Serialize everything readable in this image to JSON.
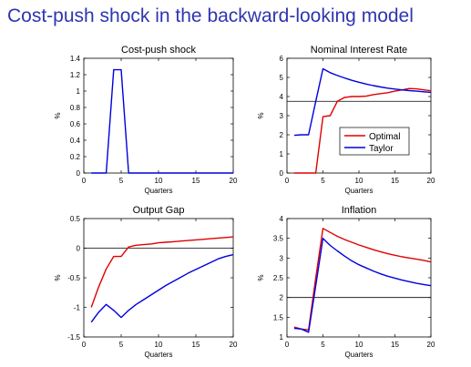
{
  "slide": {
    "title": "Cost-push shock in the backward-looking model"
  },
  "colors": {
    "optimal": "#e00000",
    "taylor": "#0000dd",
    "reference": "#000000",
    "title": "#2f35b0"
  },
  "chart_data": [
    {
      "type": "line",
      "title": "Cost-push shock",
      "xlabel": "Quarters",
      "ylabel": "%",
      "xlim": [
        0,
        20
      ],
      "ylim": [
        0,
        1.4
      ],
      "xticks": [
        "0",
        "5",
        "10",
        "15",
        "20"
      ],
      "yticks": [
        "0",
        "0.2",
        "0.4",
        "0.6",
        "0.8",
        "1",
        "1.2",
        "1.4"
      ],
      "grid": false,
      "reference_line": null,
      "legend": [],
      "series": [
        {
          "color": "#0000dd",
          "x": [
            1,
            2,
            3,
            4,
            5,
            6,
            7,
            8,
            9,
            10,
            11,
            12,
            13,
            14,
            15,
            16,
            17,
            18,
            19,
            20
          ],
          "y": [
            0,
            0,
            0,
            1.26,
            1.26,
            0,
            0,
            0,
            0,
            0,
            0,
            0,
            0,
            0,
            0,
            0,
            0,
            0,
            0,
            0
          ]
        }
      ]
    },
    {
      "type": "line",
      "title": "Nominal Interest Rate",
      "xlabel": "Quarters",
      "ylabel": "%",
      "xlim": [
        0,
        20
      ],
      "ylim": [
        0,
        6
      ],
      "xticks": [
        "0",
        "5",
        "10",
        "15",
        "20"
      ],
      "yticks": [
        "0",
        "1",
        "2",
        "3",
        "4",
        "5",
        "6"
      ],
      "grid": false,
      "reference_line": 3.75,
      "legend_placement": "center-right",
      "legend": [
        {
          "label": "Optimal",
          "color": "#e00000"
        },
        {
          "label": "Taylor",
          "color": "#0000dd"
        }
      ],
      "series": [
        {
          "name": "Optimal",
          "color": "#e00000",
          "x": [
            1,
            2,
            3,
            4,
            5,
            6,
            7,
            8,
            9,
            10,
            11,
            12,
            13,
            14,
            15,
            16,
            17,
            18,
            19,
            20
          ],
          "y": [
            0,
            0,
            0,
            0,
            2.95,
            3.0,
            3.75,
            3.95,
            4.0,
            4.0,
            4.02,
            4.1,
            4.15,
            4.2,
            4.28,
            4.35,
            4.42,
            4.4,
            4.35,
            4.3
          ]
        },
        {
          "name": "Taylor",
          "color": "#0000dd",
          "x": [
            1,
            2,
            3,
            4,
            5,
            6,
            7,
            8,
            9,
            10,
            11,
            12,
            13,
            14,
            15,
            16,
            17,
            18,
            19,
            20
          ],
          "y": [
            1.97,
            2.0,
            2.0,
            3.75,
            5.45,
            5.25,
            5.1,
            4.97,
            4.85,
            4.75,
            4.65,
            4.57,
            4.5,
            4.44,
            4.39,
            4.35,
            4.31,
            4.28,
            4.25,
            4.22
          ]
        }
      ]
    },
    {
      "type": "line",
      "title": "Output Gap",
      "xlabel": "Quarters",
      "ylabel": "%",
      "xlim": [
        0,
        20
      ],
      "ylim": [
        -1.5,
        0.5
      ],
      "xticks": [
        "0",
        "5",
        "10",
        "15",
        "20"
      ],
      "yticks": [
        "-1.5",
        "-1",
        "-0.5",
        "0",
        "0.5"
      ],
      "grid": false,
      "reference_line": 0,
      "legend": [],
      "series": [
        {
          "color": "#e00000",
          "x": [
            1,
            2,
            3,
            4,
            5,
            6,
            7,
            8,
            9,
            10,
            11,
            12,
            13,
            14,
            15,
            16,
            17,
            18,
            19,
            20
          ],
          "y": [
            -1.0,
            -0.65,
            -0.35,
            -0.14,
            -0.14,
            0.02,
            0.05,
            0.06,
            0.07,
            0.09,
            0.1,
            0.11,
            0.12,
            0.13,
            0.14,
            0.15,
            0.16,
            0.17,
            0.18,
            0.19
          ]
        },
        {
          "color": "#0000dd",
          "x": [
            1,
            2,
            3,
            4,
            5,
            6,
            7,
            8,
            9,
            10,
            11,
            12,
            13,
            14,
            15,
            16,
            17,
            18,
            19,
            20
          ],
          "y": [
            -1.25,
            -1.08,
            -0.95,
            -1.05,
            -1.17,
            -1.05,
            -0.95,
            -0.87,
            -0.79,
            -0.71,
            -0.63,
            -0.56,
            -0.49,
            -0.42,
            -0.36,
            -0.3,
            -0.24,
            -0.18,
            -0.14,
            -0.11
          ]
        }
      ]
    },
    {
      "type": "line",
      "title": "Inflation",
      "xlabel": "Quarters",
      "ylabel": "%",
      "xlim": [
        0,
        20
      ],
      "ylim": [
        1,
        4
      ],
      "xticks": [
        "0",
        "5",
        "10",
        "15",
        "20"
      ],
      "yticks": [
        "1",
        "1.5",
        "2",
        "2.5",
        "3",
        "3.5",
        "4"
      ],
      "grid": false,
      "reference_line": 2,
      "legend": [],
      "series": [
        {
          "color": "#e00000",
          "x": [
            1,
            2,
            3,
            4,
            5,
            6,
            7,
            8,
            9,
            10,
            11,
            12,
            13,
            14,
            15,
            16,
            17,
            18,
            19,
            20
          ],
          "y": [
            1.25,
            1.2,
            1.18,
            2.5,
            3.75,
            3.65,
            3.55,
            3.47,
            3.4,
            3.33,
            3.27,
            3.21,
            3.16,
            3.11,
            3.07,
            3.03,
            3.0,
            2.97,
            2.94,
            2.9
          ]
        },
        {
          "color": "#0000dd",
          "x": [
            1,
            2,
            3,
            4,
            5,
            6,
            7,
            8,
            9,
            10,
            11,
            12,
            13,
            14,
            15,
            16,
            17,
            18,
            19,
            20
          ],
          "y": [
            1.22,
            1.2,
            1.12,
            2.3,
            3.5,
            3.32,
            3.18,
            3.05,
            2.93,
            2.83,
            2.75,
            2.67,
            2.6,
            2.54,
            2.49,
            2.44,
            2.4,
            2.36,
            2.33,
            2.3
          ]
        }
      ]
    }
  ]
}
